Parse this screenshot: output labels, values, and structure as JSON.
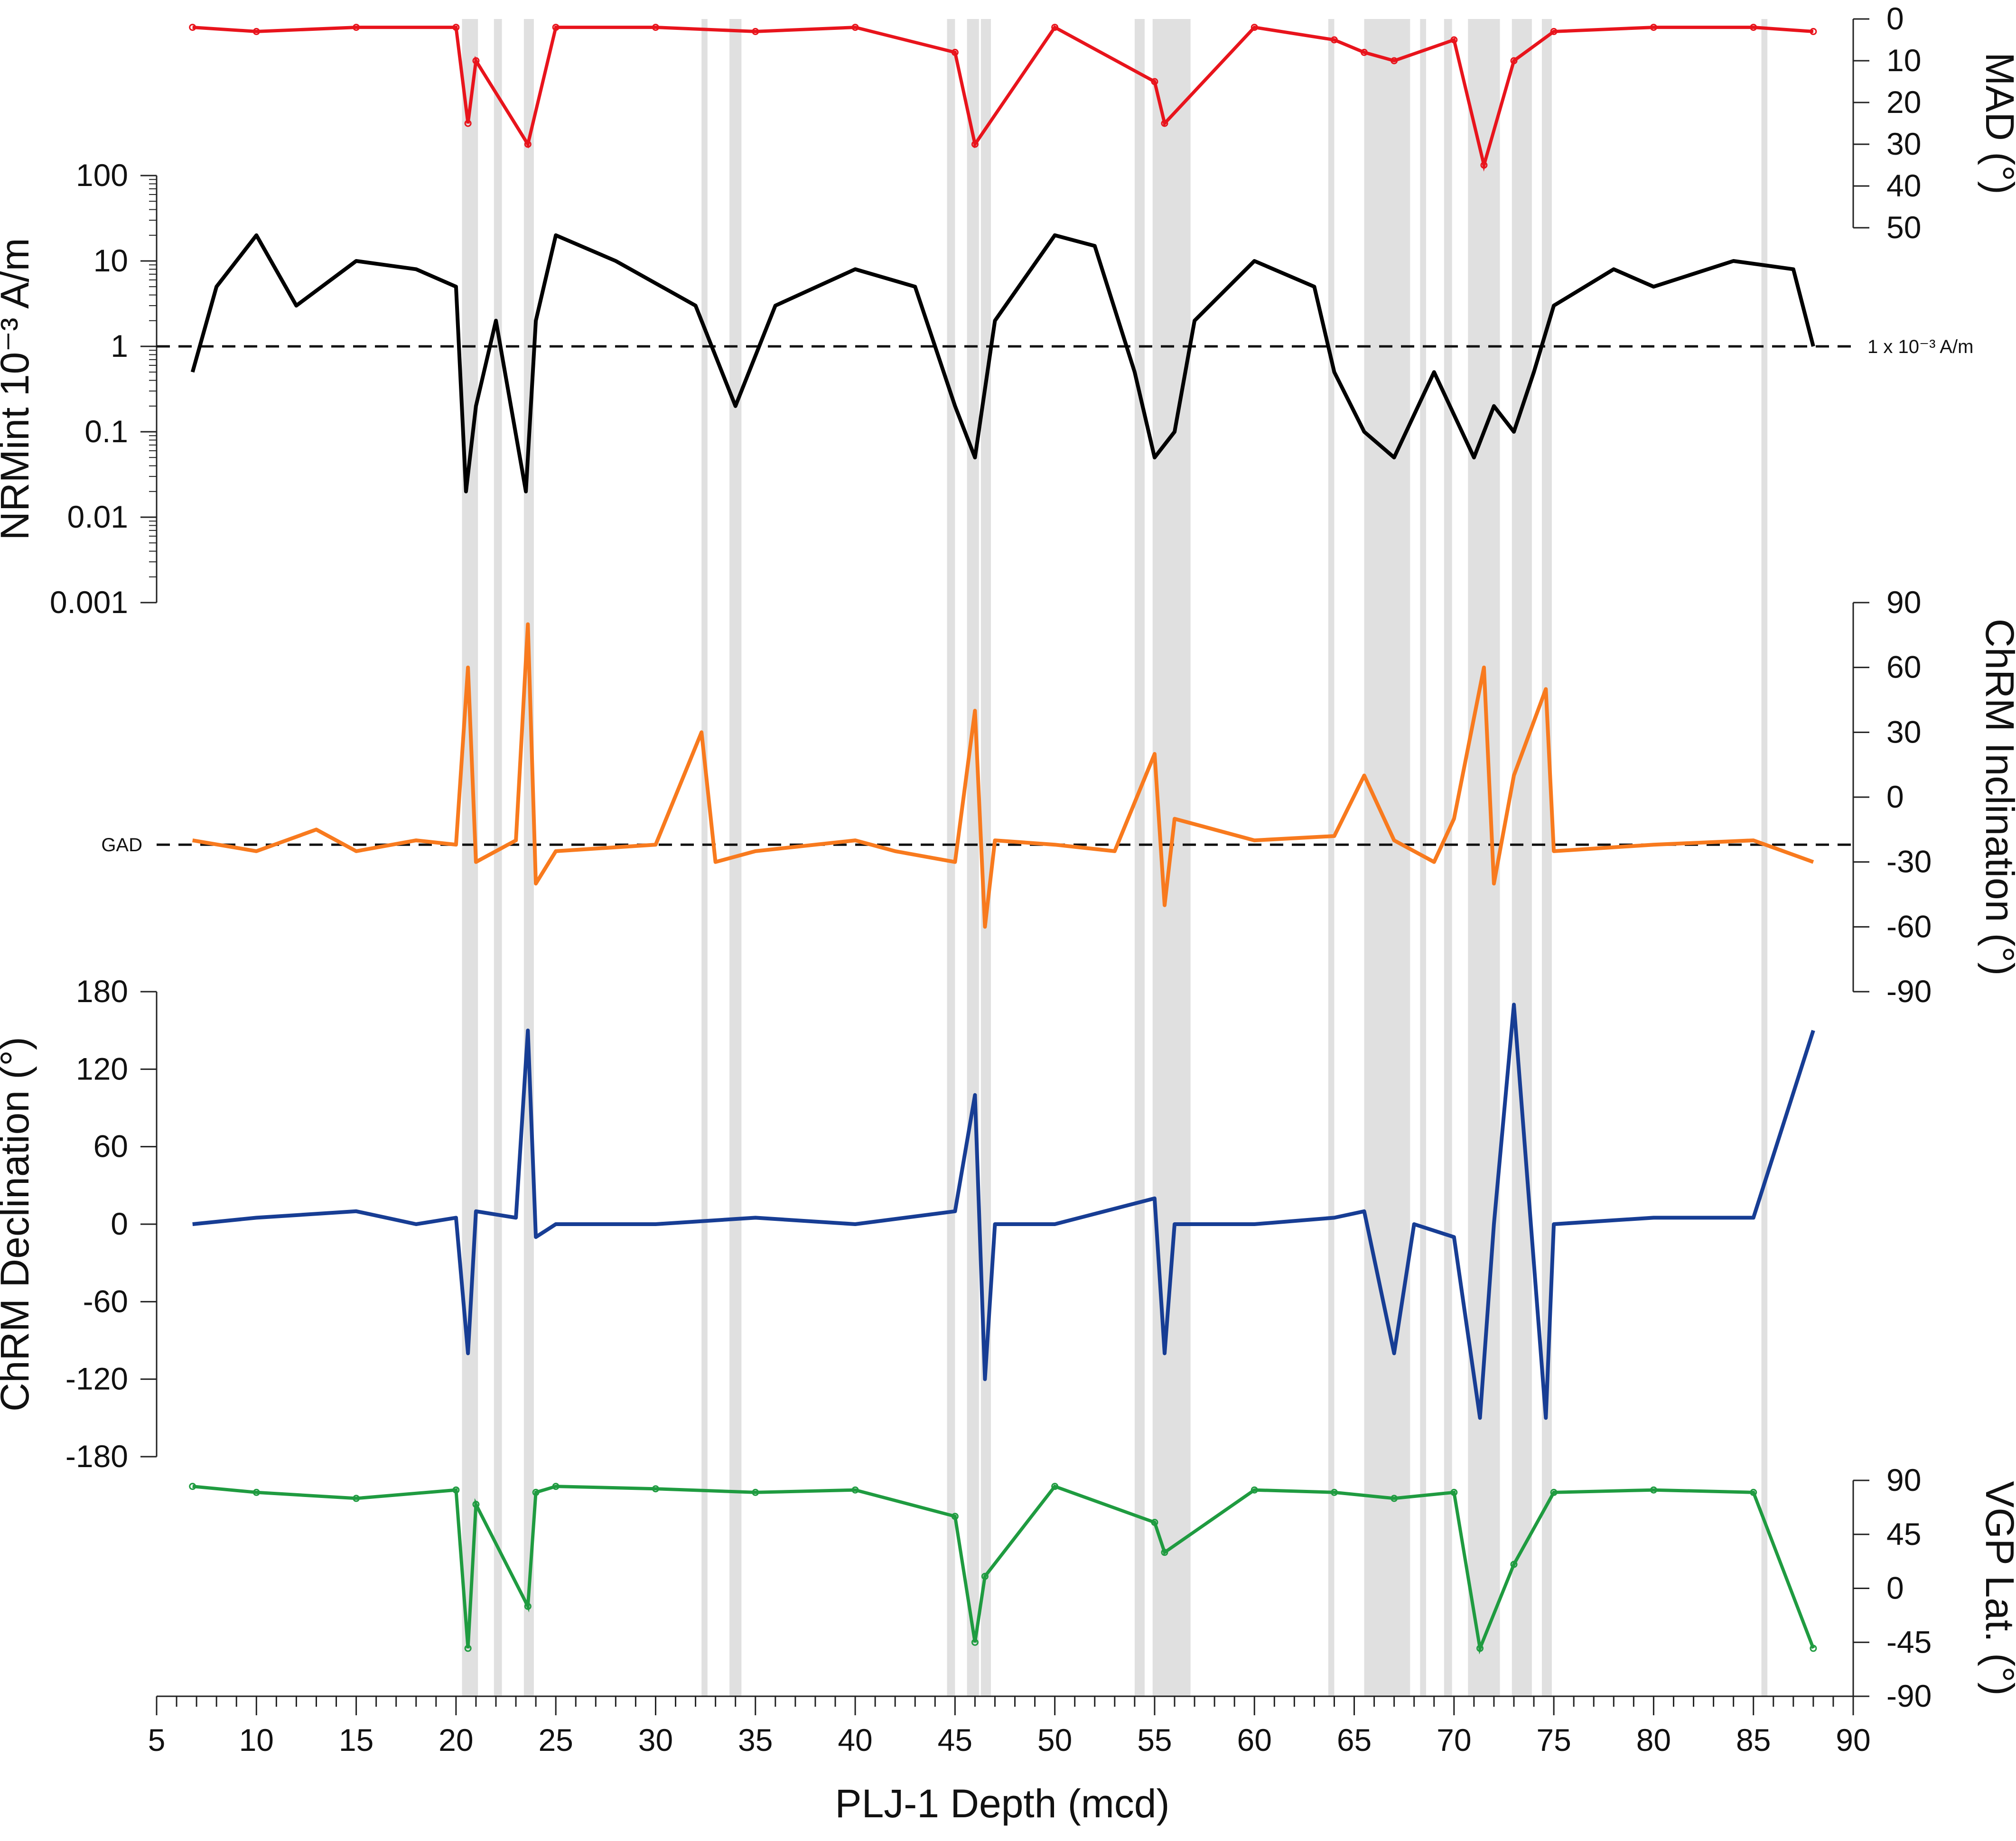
{
  "chart_data": {
    "type": "line",
    "x_axis": {
      "label": "PLJ-1 Depth (mcd)",
      "range": [
        5,
        90
      ],
      "ticks": [
        5,
        10,
        15,
        20,
        25,
        30,
        35,
        40,
        45,
        50,
        55,
        60,
        65,
        70,
        75,
        80,
        85,
        90
      ]
    },
    "excluded_intervals": [
      [
        20.3,
        21.1
      ],
      [
        21.9,
        22.3
      ],
      [
        23.4,
        23.9
      ],
      [
        32.3,
        32.6
      ],
      [
        33.7,
        34.3
      ],
      [
        44.6,
        45.0
      ],
      [
        45.6,
        46.2
      ],
      [
        46.3,
        46.8
      ],
      [
        54.0,
        54.5
      ],
      [
        54.9,
        56.8
      ],
      [
        63.7,
        64.0
      ],
      [
        65.5,
        67.8
      ],
      [
        68.3,
        68.6
      ],
      [
        69.5,
        69.9
      ],
      [
        70.7,
        72.3
      ],
      [
        72.9,
        73.9
      ],
      [
        74.4,
        74.9
      ],
      [
        85.4,
        85.7
      ]
    ],
    "panels": [
      {
        "id": "mad",
        "ylabel": "MAD (°)",
        "axis_side": "right",
        "ylim": [
          50,
          0
        ],
        "ticks": [
          "0",
          "10",
          "20",
          "30",
          "40",
          "50"
        ],
        "color": "#e8141c",
        "series": [
          {
            "x": [
              6.8,
              10,
              15,
              20,
              20.6,
              21,
              23.6,
              25,
              30,
              35,
              40,
              45,
              46,
              50,
              55,
              55.5,
              60,
              64,
              65.5,
              67,
              70,
              71.5,
              73,
              75,
              80,
              85,
              88
            ],
            "y": [
              2,
              3,
              2,
              2,
              25,
              10,
              30,
              2,
              2,
              3,
              2,
              8,
              30,
              2,
              15,
              25,
              2,
              5,
              8,
              10,
              5,
              35,
              10,
              3,
              2,
              2,
              3
            ]
          }
        ]
      },
      {
        "id": "nrm",
        "ylabel": "NRMint 10⁻³ A/m",
        "axis_side": "left",
        "scale": "log",
        "ylim": [
          0.001,
          100
        ],
        "ticks": [
          "0.001",
          "0.01",
          "0.1",
          "1",
          "10",
          "100"
        ],
        "reference_line": {
          "value": 1,
          "label": "1 x 10⁻³ A/m"
        },
        "color": "#000000",
        "series": [
          {
            "name": "NRM",
            "x": [
              6.8,
              8,
              10,
              12,
              15,
              18,
              20,
              20.5,
              21,
              22,
              23.5,
              24,
              25,
              28,
              32,
              34,
              36,
              40,
              43,
              45,
              46,
              47,
              50,
              52,
              54,
              55,
              56,
              57,
              60,
              63,
              64,
              65.5,
              67,
              69,
              71,
              72,
              73,
              74,
              75,
              78,
              80,
              84,
              87,
              88
            ],
            "y": [
              0.5,
              5,
              20,
              3,
              10,
              8,
              5,
              0.02,
              0.2,
              2,
              0.02,
              2,
              20,
              10,
              3,
              0.2,
              3,
              8,
              5,
              0.2,
              0.05,
              2,
              20,
              15,
              0.5,
              0.05,
              0.1,
              2,
              10,
              5,
              0.5,
              0.1,
              0.05,
              0.5,
              0.05,
              0.2,
              0.1,
              0.5,
              3,
              8,
              5,
              10,
              8,
              1
            ]
          }
        ]
      },
      {
        "id": "inc",
        "ylabel": "ChRM Inclination (°)",
        "axis_side": "right",
        "ylim": [
          -90,
          90
        ],
        "ticks": [
          "90",
          "60",
          "30",
          "0",
          "-30",
          "-60",
          "-90"
        ],
        "reference_line": {
          "value": -22,
          "label": "GAD"
        },
        "color": "#f87a1e",
        "series": [
          {
            "name": "Inclination",
            "x": [
              6.8,
              10,
              13,
              15,
              18,
              20,
              20.6,
              21,
              23,
              23.6,
              24,
              25,
              30,
              32.3,
              33,
              35,
              40,
              42,
              45,
              46,
              46.5,
              47,
              50,
              53,
              55,
              55.5,
              56,
              60,
              64,
              65.5,
              67,
              69,
              70,
              71.5,
              72,
              73,
              74.6,
              75,
              80,
              85,
              88
            ],
            "y": [
              -20,
              -25,
              -15,
              -25,
              -20,
              -22,
              60,
              -30,
              -20,
              80,
              -40,
              -25,
              -22,
              30,
              -30,
              -25,
              -20,
              -25,
              -30,
              40,
              -60,
              -20,
              -22,
              -25,
              20,
              -50,
              -10,
              -20,
              -18,
              10,
              -20,
              -30,
              -10,
              60,
              -40,
              10,
              50,
              -25,
              -22,
              -20,
              -30
            ]
          }
        ]
      },
      {
        "id": "dec",
        "ylabel": "ChRM Declination (°)",
        "axis_side": "left",
        "ylim": [
          -180,
          180
        ],
        "ticks": [
          "180",
          "120",
          "60",
          "0",
          "-60",
          "-120",
          "-180"
        ],
        "color": "#173d94",
        "series": [
          {
            "name": "Declination",
            "x": [
              6.8,
              10,
              15,
              18,
              20,
              20.6,
              21,
              23,
              23.6,
              24,
              25,
              30,
              35,
              40,
              45,
              46,
              46.5,
              47,
              50,
              55,
              55.5,
              56,
              60,
              64,
              65.5,
              67,
              68,
              70,
              71.3,
              72,
              73,
              74.6,
              75,
              80,
              85,
              88
            ],
            "y": [
              0,
              5,
              10,
              0,
              5,
              -100,
              10,
              5,
              150,
              -10,
              0,
              0,
              5,
              0,
              10,
              100,
              -120,
              0,
              0,
              20,
              -100,
              0,
              0,
              5,
              10,
              -100,
              0,
              -10,
              -150,
              0,
              170,
              -150,
              0,
              5,
              5,
              150
            ]
          }
        ]
      },
      {
        "id": "vgp",
        "ylabel": "VGP Lat. (°)",
        "axis_side": "right",
        "ylim": [
          -90,
          90
        ],
        "ticks": [
          "90",
          "45",
          "0",
          "-45",
          "-90"
        ],
        "color": "#1f9b40",
        "series": [
          {
            "name": "VGP",
            "x": [
              6.8,
              10,
              15,
              20,
              20.6,
              21,
              23.6,
              24,
              25,
              30,
              35,
              40,
              45,
              46,
              46.5,
              50,
              55,
              55.5,
              60,
              64,
              67,
              70,
              71.3,
              73,
              75,
              80,
              85,
              88
            ],
            "y": [
              85,
              80,
              75,
              82,
              -50,
              70,
              -15,
              80,
              85,
              83,
              80,
              82,
              60,
              -45,
              10,
              85,
              55,
              30,
              82,
              80,
              75,
              80,
              -50,
              20,
              80,
              82,
              80,
              -50
            ]
          }
        ]
      }
    ]
  }
}
